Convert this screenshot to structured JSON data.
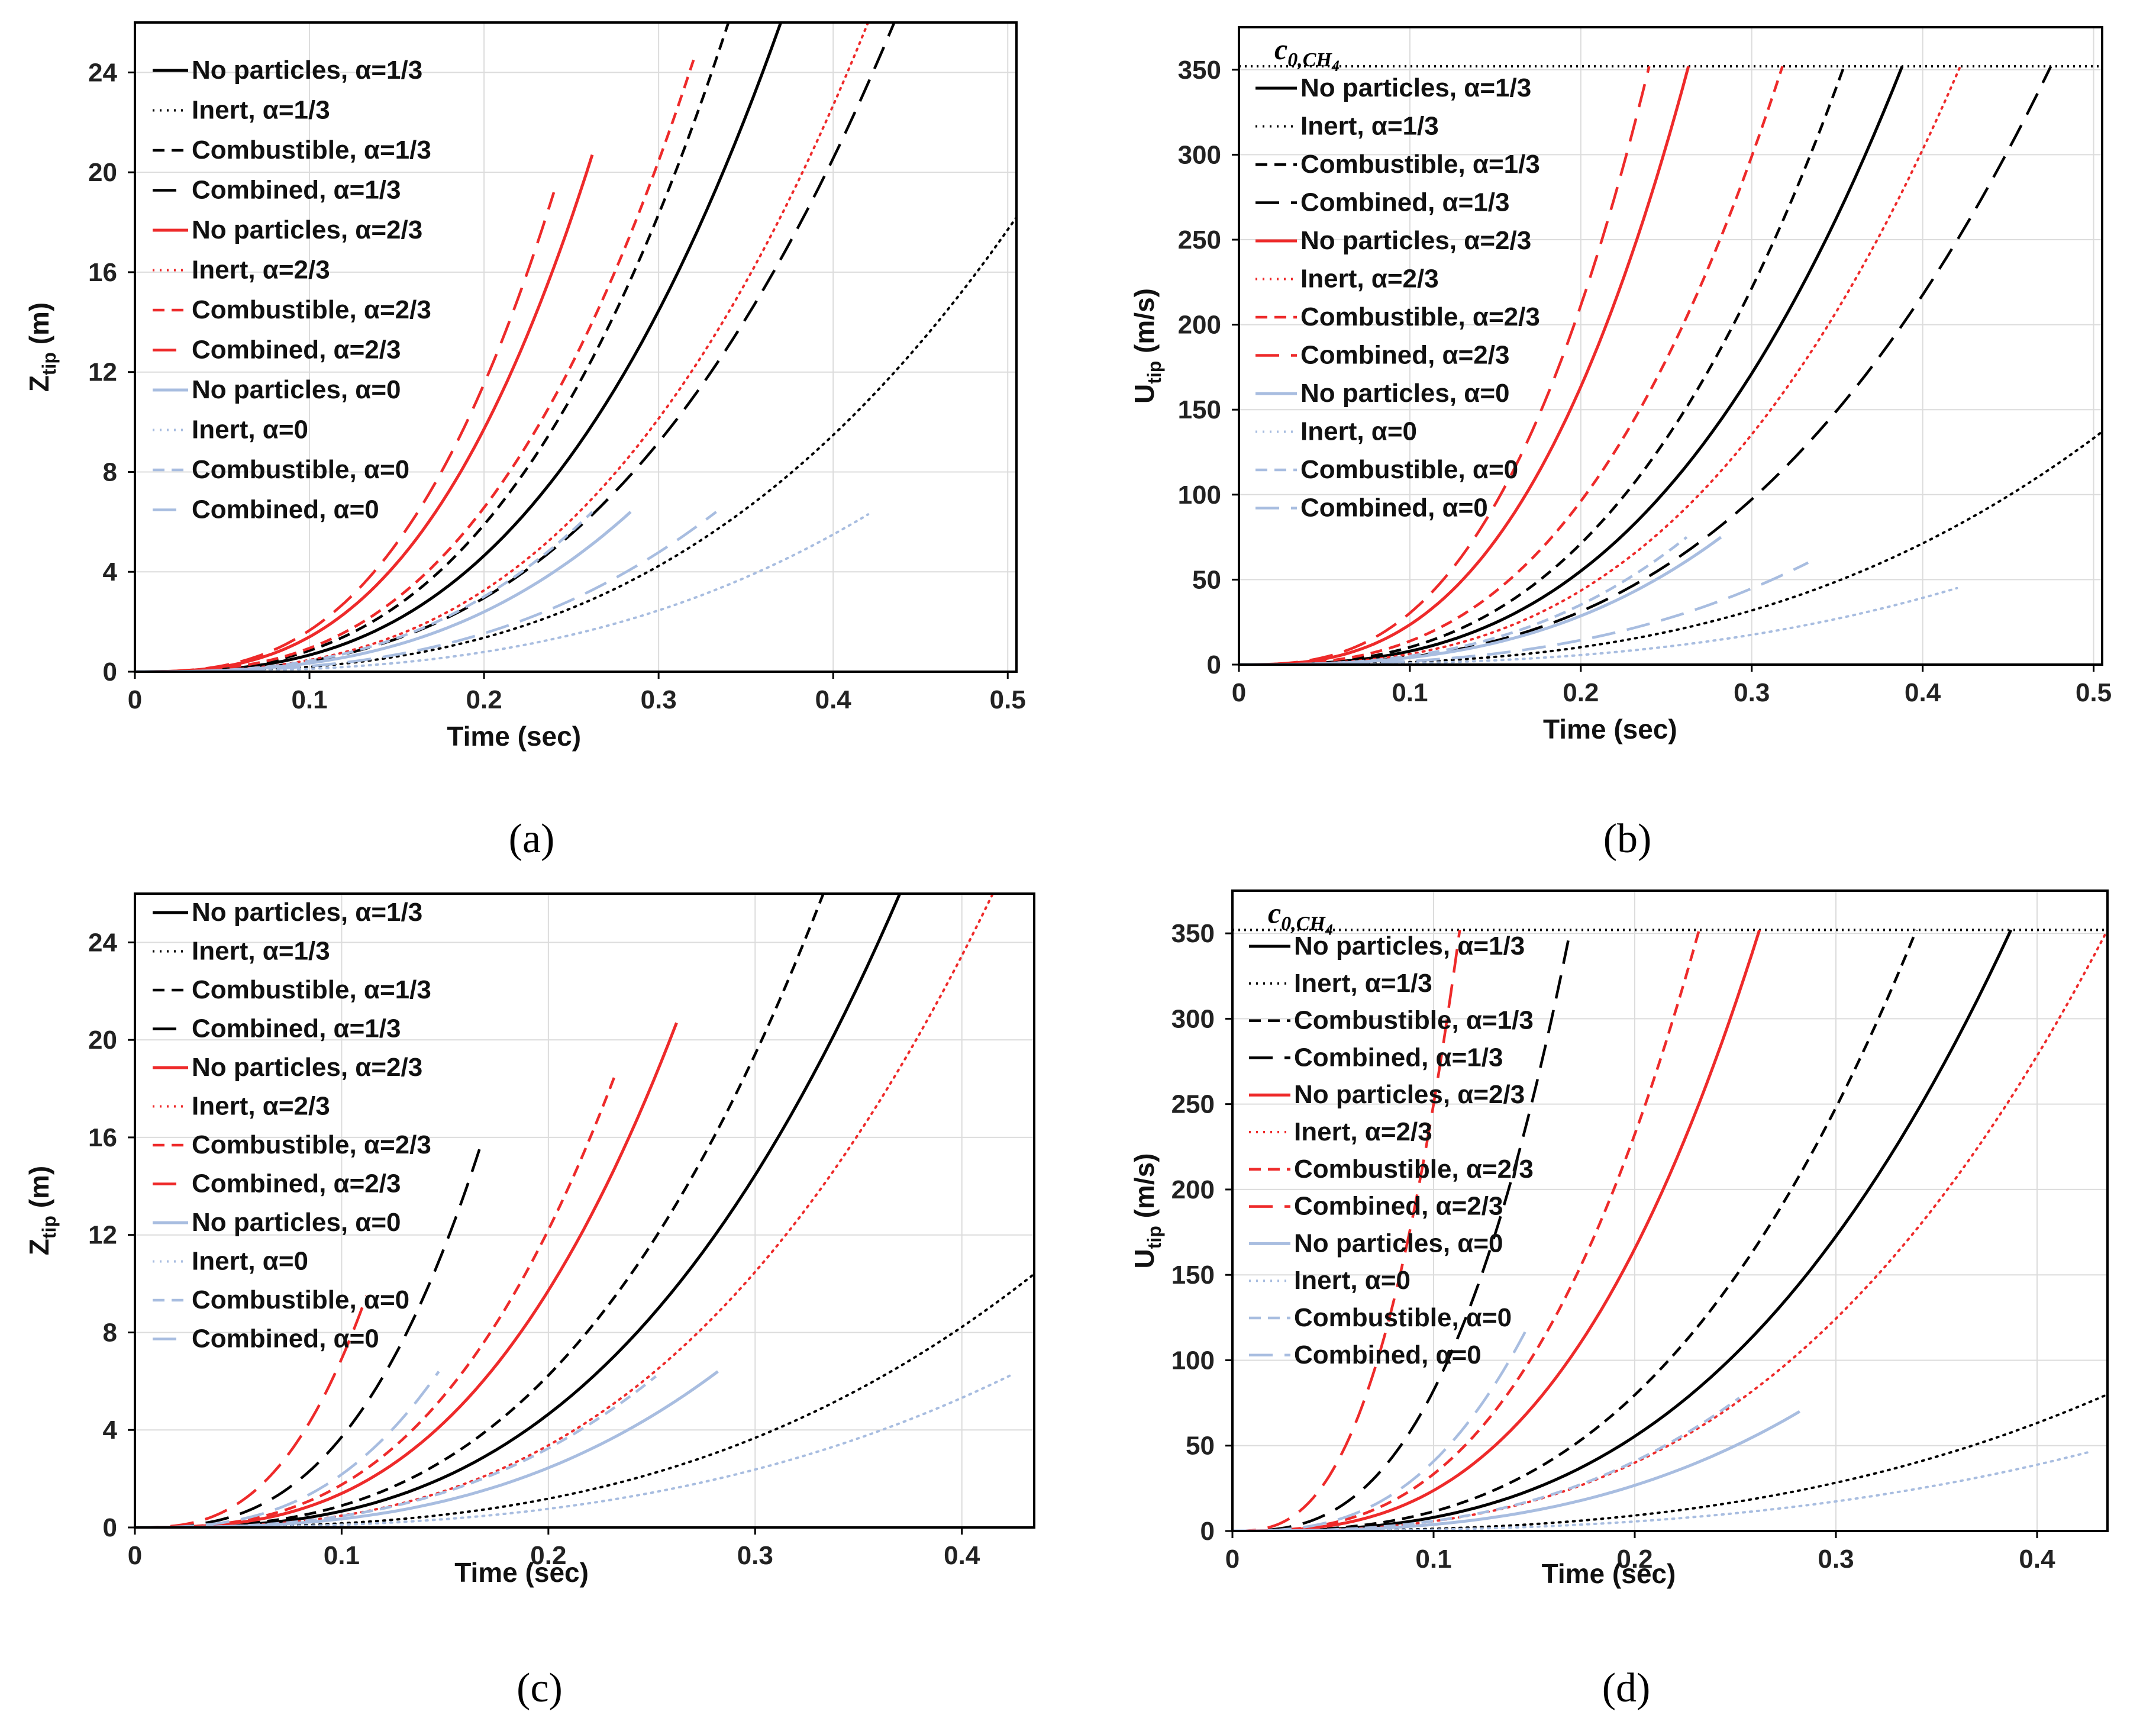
{
  "styles": {
    "colors": {
      "black": "#000000",
      "red": "#ee2a2a",
      "blue": "#a8bde0",
      "grid": "#dcdcdc"
    }
  },
  "legend_order": [
    {
      "name": "No particles, α=1/3",
      "color": "black",
      "dash": "solid"
    },
    {
      "name": "Inert, α=1/3",
      "color": "black",
      "dash": "dotted"
    },
    {
      "name": "Combustible, α=1/3",
      "color": "black",
      "dash": "shortdash"
    },
    {
      "name": "Combined, α=1/3",
      "color": "black",
      "dash": "longdash"
    },
    {
      "name": "No particles, α=2/3",
      "color": "red",
      "dash": "solid"
    },
    {
      "name": "Inert, α=2/3",
      "color": "red",
      "dash": "dotted"
    },
    {
      "name": "Combustible, α=2/3",
      "color": "red",
      "dash": "shortdash"
    },
    {
      "name": "Combined, α=2/3",
      "color": "red",
      "dash": "longdash"
    },
    {
      "name": "No particles, α=0",
      "color": "blue",
      "dash": "solid"
    },
    {
      "name": "Inert, α=0",
      "color": "blue",
      "dash": "dotted"
    },
    {
      "name": "Combustible, α=0",
      "color": "blue",
      "dash": "shortdash"
    },
    {
      "name": "Combined, α=0",
      "color": "blue",
      "dash": "longdash"
    }
  ],
  "chart_data": [
    {
      "panel": "a",
      "type": "line",
      "caption": "(a)",
      "xlabel": "Time (sec)",
      "ylabel_main": "Z",
      "ylabel_sub": "tip",
      "ylabel_unit": " (m)",
      "xlim": [
        0,
        0.505
      ],
      "ylim": [
        0,
        26
      ],
      "xticks": [
        0,
        0.1,
        0.2,
        0.3,
        0.4,
        0.5
      ],
      "xticklabels": [
        "0",
        "0.1",
        "0.2",
        "0.3",
        "0.4",
        "0.5"
      ],
      "yticks": [
        0,
        4,
        8,
        12,
        16,
        20,
        24
      ],
      "yticklabels": [
        "0",
        "4",
        "8",
        "12",
        "16",
        "20",
        "24"
      ],
      "series": [
        {
          "name": "No particles, α=1/3",
          "end_x": 0.37,
          "end_y": 26
        },
        {
          "name": "Inert, α=1/3",
          "end_x": 0.505,
          "end_y": 18.2
        },
        {
          "name": "Combustible, α=1/3",
          "end_x": 0.34,
          "end_y": 26
        },
        {
          "name": "Combined, α=1/3",
          "end_x": 0.435,
          "end_y": 26
        },
        {
          "name": "No particles, α=2/3",
          "end_x": 0.262,
          "end_y": 20.7
        },
        {
          "name": "Inert, α=2/3",
          "end_x": 0.42,
          "end_y": 26
        },
        {
          "name": "Combustible, α=2/3",
          "end_x": 0.32,
          "end_y": 24.5
        },
        {
          "name": "Combined, α=2/3",
          "end_x": 0.24,
          "end_y": 19.2
        },
        {
          "name": "No particles, α=0",
          "end_x": 0.284,
          "end_y": 6.4
        },
        {
          "name": "Inert, α=0",
          "end_x": 0.42,
          "end_y": 6.3
        },
        {
          "name": "Combustible, α=0",
          "end_x": 0.262,
          "end_y": 6.4
        },
        {
          "name": "Combined, α=0",
          "end_x": 0.333,
          "end_y": 6.4
        }
      ]
    },
    {
      "panel": "b",
      "type": "line",
      "caption": "(b)",
      "xlabel": "Time (sec)",
      "ylabel_main": "U",
      "ylabel_sub": "tip",
      "ylabel_unit": " (m/s)",
      "xlim": [
        0,
        0.505
      ],
      "ylim": [
        0,
        375
      ],
      "xticks": [
        0,
        0.1,
        0.2,
        0.3,
        0.4,
        0.5
      ],
      "xticklabels": [
        "0",
        "0.1",
        "0.2",
        "0.3",
        "0.4",
        "0.5"
      ],
      "yticks": [
        0,
        50,
        100,
        150,
        200,
        250,
        300,
        350
      ],
      "yticklabels": [
        "0",
        "50",
        "100",
        "150",
        "200",
        "250",
        "300",
        "350"
      ],
      "reference": {
        "label_main": "c",
        "label_sub": "0,CH",
        "label_subsub": "4",
        "value": 352
      },
      "series": [
        {
          "name": "No particles, α=1/3",
          "end_x": 0.388,
          "end_y": 352
        },
        {
          "name": "Inert, α=1/3",
          "end_x": 0.505,
          "end_y": 137
        },
        {
          "name": "Combustible, α=1/3",
          "end_x": 0.354,
          "end_y": 352
        },
        {
          "name": "Combined, α=1/3",
          "end_x": 0.475,
          "end_y": 352
        },
        {
          "name": "No particles, α=2/3",
          "end_x": 0.263,
          "end_y": 352
        },
        {
          "name": "Inert, α=2/3",
          "end_x": 0.422,
          "end_y": 352
        },
        {
          "name": "Combustible, α=2/3",
          "end_x": 0.318,
          "end_y": 352
        },
        {
          "name": "Combined, α=2/3",
          "end_x": 0.24,
          "end_y": 352
        },
        {
          "name": "No particles, α=0",
          "end_x": 0.282,
          "end_y": 75
        },
        {
          "name": "Inert, α=0",
          "end_x": 0.42,
          "end_y": 45
        },
        {
          "name": "Combustible, α=0",
          "end_x": 0.262,
          "end_y": 75
        },
        {
          "name": "Combined, α=0",
          "end_x": 0.333,
          "end_y": 60
        }
      ]
    },
    {
      "panel": "c",
      "type": "line",
      "caption": "(c)",
      "xlabel": "Time (sec)",
      "ylabel_main": "Z",
      "ylabel_sub": "tip",
      "ylabel_unit": " (m)",
      "xlim": [
        0,
        0.435
      ],
      "ylim": [
        0,
        26
      ],
      "xticks": [
        0,
        0.1,
        0.2,
        0.3,
        0.4
      ],
      "xticklabels": [
        "0",
        "0.1",
        "0.2",
        "0.3",
        "0.4"
      ],
      "yticks": [
        0,
        4,
        8,
        12,
        16,
        20,
        24
      ],
      "yticklabels": [
        "0",
        "4",
        "8",
        "12",
        "16",
        "20",
        "24"
      ],
      "series": [
        {
          "name": "No particles, α=1/3",
          "end_x": 0.37,
          "end_y": 26
        },
        {
          "name": "Inert, α=1/3",
          "end_x": 0.435,
          "end_y": 10.4
        },
        {
          "name": "Combustible, α=1/3",
          "end_x": 0.333,
          "end_y": 26
        },
        {
          "name": "Combined, α=1/3",
          "end_x": 0.167,
          "end_y": 15.6
        },
        {
          "name": "No particles, α=2/3",
          "end_x": 0.262,
          "end_y": 20.7
        },
        {
          "name": "Inert, α=2/3",
          "end_x": 0.415,
          "end_y": 26
        },
        {
          "name": "Combustible, α=2/3",
          "end_x": 0.232,
          "end_y": 18.5
        },
        {
          "name": "Combined, α=2/3",
          "end_x": 0.112,
          "end_y": 9.5
        },
        {
          "name": "No particles, α=0",
          "end_x": 0.282,
          "end_y": 6.4
        },
        {
          "name": "Inert, α=0",
          "end_x": 0.425,
          "end_y": 6.3
        },
        {
          "name": "Combustible, α=0",
          "end_x": 0.252,
          "end_y": 6.2
        },
        {
          "name": "Combined, α=0",
          "end_x": 0.147,
          "end_y": 6.4
        }
      ]
    },
    {
      "panel": "d",
      "type": "line",
      "caption": "(d)",
      "xlabel": "Time (sec)",
      "ylabel_main": "U",
      "ylabel_sub": "tip",
      "ylabel_unit": " (m/s)",
      "xlim": [
        0,
        0.435
      ],
      "ylim": [
        0,
        375
      ],
      "xticks": [
        0,
        0.1,
        0.2,
        0.3,
        0.4
      ],
      "xticklabels": [
        "0",
        "0.1",
        "0.2",
        "0.3",
        "0.4"
      ],
      "yticks": [
        0,
        50,
        100,
        150,
        200,
        250,
        300,
        350
      ],
      "yticklabels": [
        "0",
        "50",
        "100",
        "150",
        "200",
        "250",
        "300",
        "350"
      ],
      "reference": {
        "label_main": "c",
        "label_sub": "0,CH",
        "label_subsub": "4",
        "value": 352
      },
      "series": [
        {
          "name": "No particles, α=1/3",
          "end_x": 0.387,
          "end_y": 352
        },
        {
          "name": "Inert, α=1/3",
          "end_x": 0.435,
          "end_y": 80
        },
        {
          "name": "Combustible, α=1/3",
          "end_x": 0.34,
          "end_y": 352
        },
        {
          "name": "Combined, α=1/3",
          "end_x": 0.168,
          "end_y": 352
        },
        {
          "name": "No particles, α=2/3",
          "end_x": 0.262,
          "end_y": 352
        },
        {
          "name": "Inert, α=2/3",
          "end_x": 0.435,
          "end_y": 352
        },
        {
          "name": "Combustible, α=2/3",
          "end_x": 0.232,
          "end_y": 352
        },
        {
          "name": "Combined, α=2/3",
          "end_x": 0.113,
          "end_y": 352
        },
        {
          "name": "No particles, α=0",
          "end_x": 0.282,
          "end_y": 70
        },
        {
          "name": "Inert, α=0",
          "end_x": 0.425,
          "end_y": 46
        },
        {
          "name": "Combustible, α=0",
          "end_x": 0.252,
          "end_y": 78
        },
        {
          "name": "Combined, α=0",
          "end_x": 0.147,
          "end_y": 120
        }
      ]
    }
  ]
}
